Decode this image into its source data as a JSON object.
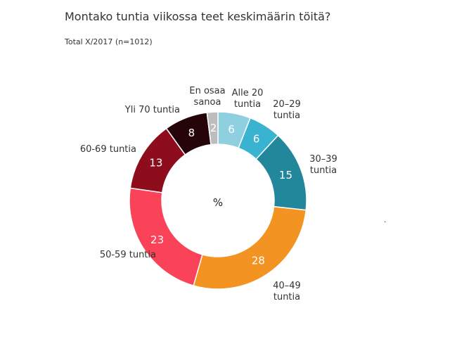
{
  "title": "Montako tuntia viikossa teet keskimäärin töitä?",
  "subtitle": "Total X/2017 (n=1012)",
  "chart_data": {
    "type": "pie",
    "center_label": "%",
    "slices": [
      {
        "label": "Alle 20\ntuntia",
        "value": 6,
        "color": "#8ecfe0"
      },
      {
        "label": "20–29\ntuntia",
        "value": 6,
        "color": "#3ab3d1"
      },
      {
        "label": "30–39\ntuntia",
        "value": 15,
        "color": "#23879c"
      },
      {
        "label": "40–49\ntuntia",
        "value": 28,
        "color": "#f39322"
      },
      {
        "label": "50-59 tuntia",
        "value": 23,
        "color": "#fa4258"
      },
      {
        "label": "60-69 tuntia",
        "value": 13,
        "color": "#8e0d1d"
      },
      {
        "label": "Yli 70 tuntia",
        "value": 8,
        "color": "#26050a"
      },
      {
        "label": "En osaa\nsanoa",
        "value": 2,
        "color": "#bdbdbd"
      }
    ]
  },
  "dot": "."
}
